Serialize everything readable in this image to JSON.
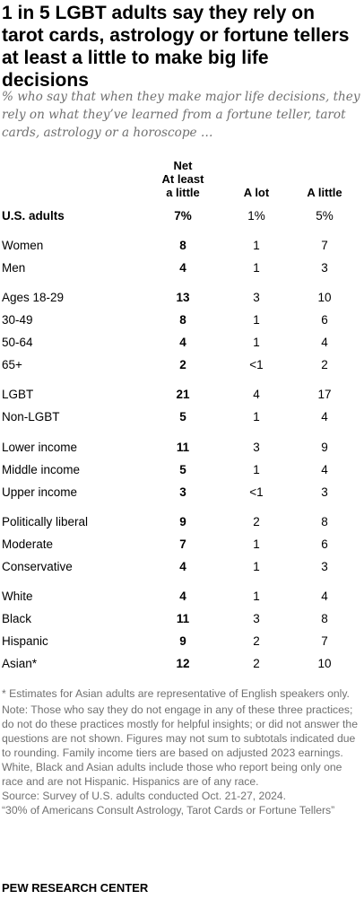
{
  "title": "1 in 5 LGBT adults say they rely on tarot cards, astrology or fortune tellers at least a little to make big life decisions",
  "subtitle": "% who say that when they make major life decisions, they rely on what they’ve learned from a fortune teller, tarot cards, astrology or a horoscope …",
  "chart_data": {
    "type": "table",
    "title": "1 in 5 LGBT adults say they rely on tarot cards, astrology or fortune tellers at least a little to make big life decisions",
    "columns": [
      "Net At least a little",
      "A lot",
      "A little"
    ],
    "column_header_lines": [
      [
        "Net",
        "At least",
        "a little"
      ],
      [
        "A lot"
      ],
      [
        "A little"
      ]
    ],
    "rows": [
      {
        "label": "U.S. adults",
        "net": "7%",
        "a_lot": "1%",
        "a_little": "5%"
      },
      {
        "label": "Women",
        "net": "8",
        "a_lot": "1",
        "a_little": "7"
      },
      {
        "label": "Men",
        "net": "4",
        "a_lot": "1",
        "a_little": "3"
      },
      {
        "label": "Ages 18-29",
        "net": "13",
        "a_lot": "3",
        "a_little": "10"
      },
      {
        "label": "30-49",
        "net": "8",
        "a_lot": "1",
        "a_little": "6"
      },
      {
        "label": "50-64",
        "net": "4",
        "a_lot": "1",
        "a_little": "4"
      },
      {
        "label": "65+",
        "net": "2",
        "a_lot": "<1",
        "a_little": "2"
      },
      {
        "label": "LGBT",
        "net": "21",
        "a_lot": "4",
        "a_little": "17"
      },
      {
        "label": "Non-LGBT",
        "net": "5",
        "a_lot": "1",
        "a_little": "4"
      },
      {
        "label": "Lower income",
        "net": "11",
        "a_lot": "3",
        "a_little": "9"
      },
      {
        "label": "Middle income",
        "net": "5",
        "a_lot": "1",
        "a_little": "4"
      },
      {
        "label": "Upper income",
        "net": "3",
        "a_lot": "<1",
        "a_little": "3"
      },
      {
        "label": "Politically liberal",
        "net": "9",
        "a_lot": "2",
        "a_little": "8"
      },
      {
        "label": "Moderate",
        "net": "7",
        "a_lot": "1",
        "a_little": "6"
      },
      {
        "label": "Conservative",
        "net": "4",
        "a_lot": "1",
        "a_little": "3"
      },
      {
        "label": "White",
        "net": "4",
        "a_lot": "1",
        "a_little": "4"
      },
      {
        "label": "Black",
        "net": "11",
        "a_lot": "3",
        "a_little": "8"
      },
      {
        "label": "Hispanic",
        "net": "9",
        "a_lot": "2",
        "a_little": "7"
      },
      {
        "label": "Asian*",
        "net": "12",
        "a_lot": "2",
        "a_little": "10"
      }
    ]
  },
  "notes": {
    "asterisk": "* Estimates for Asian adults are representative of English speakers only.",
    "note": "Note: Those who say they do not engage in any of these three practices; do not do these practices mostly for helpful insights; or did not answer the questions are not shown. Figures may not sum to subtotals indicated due to rounding. Family income tiers are based on adjusted 2023 earnings. White, Black and Asian adults include those who report being only one race and are not Hispanic. Hispanics are of any race.",
    "source": "Source: Survey of U.S. adults conducted Oct. 21-27, 2024.",
    "report": "“30% of Americans Consult Astrology, Tarot Cards or Fortune Tellers”"
  },
  "brand": "PEW RESEARCH CENTER"
}
